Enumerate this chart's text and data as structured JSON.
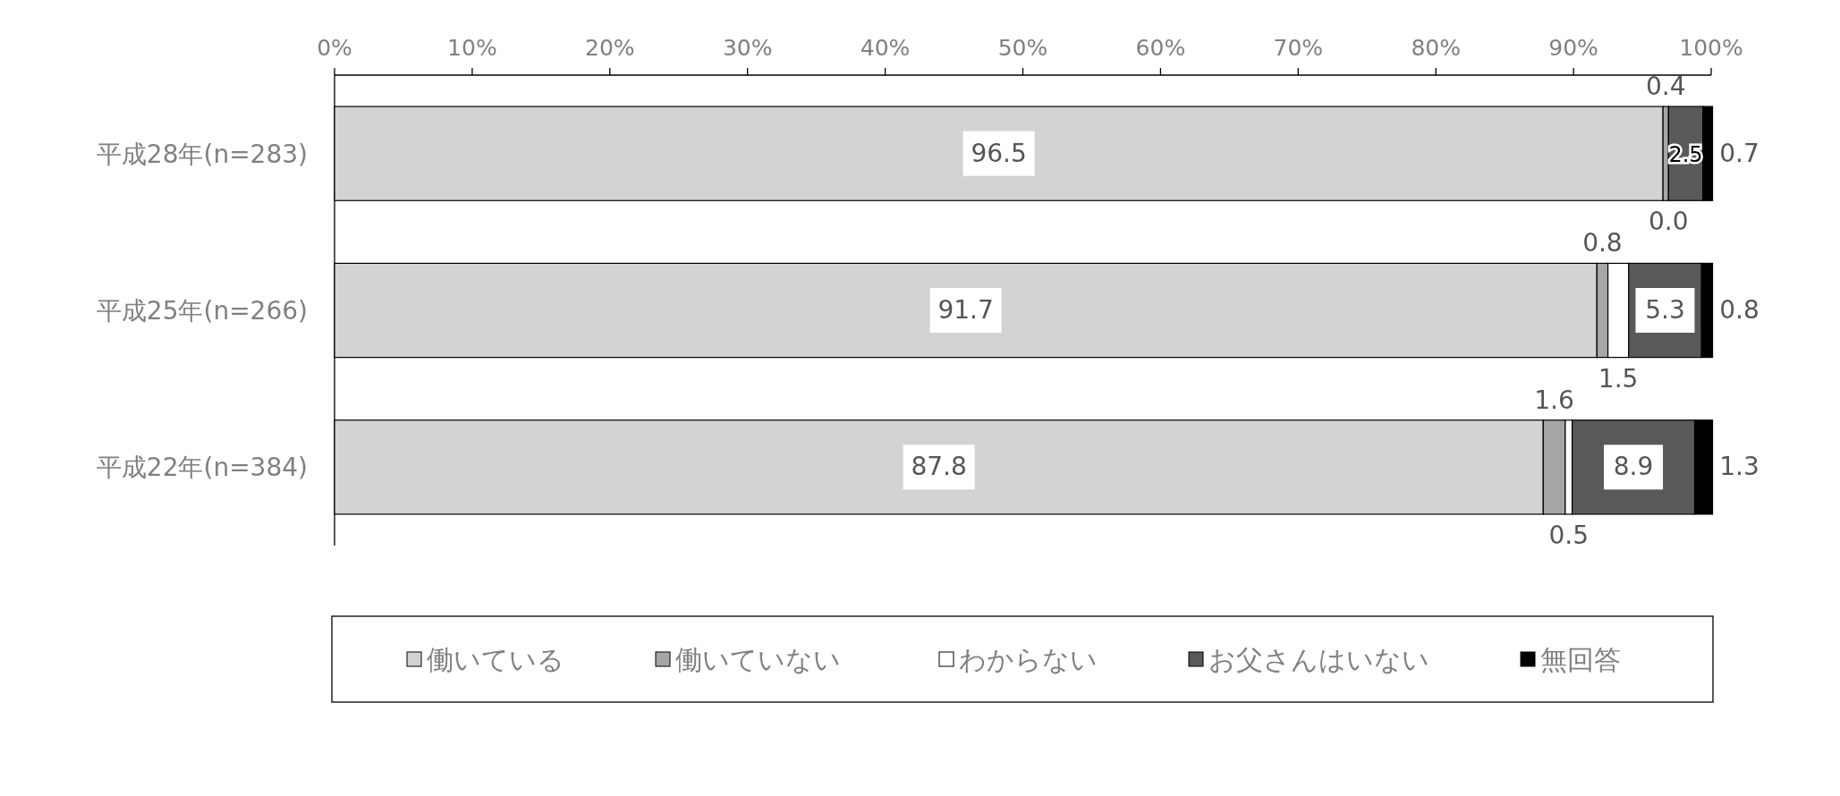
{
  "chart_data": {
    "type": "bar",
    "orientation": "horizontal",
    "stacked": true,
    "legend": "bottom",
    "grid": false,
    "categories": [
      "平成28年(n=283)",
      "平成25年(n=266)",
      "平成22年(n=384)"
    ],
    "xlim": [
      0,
      100
    ],
    "xticks": [
      {
        "value": 0,
        "label": "0%"
      },
      {
        "value": 10,
        "label": "10%"
      },
      {
        "value": 20,
        "label": "20%"
      },
      {
        "value": 30,
        "label": "30%"
      },
      {
        "value": 40,
        "label": "40%"
      },
      {
        "value": 50,
        "label": "50%"
      },
      {
        "value": 60,
        "label": "60%"
      },
      {
        "value": 70,
        "label": "70%"
      },
      {
        "value": 80,
        "label": "80%"
      },
      {
        "value": 90,
        "label": "90%"
      },
      {
        "value": 100,
        "label": "100%"
      }
    ],
    "series": [
      {
        "name": "働いている",
        "color": "#d3d3d3",
        "values": [
          96.5,
          91.7,
          87.8
        ],
        "value_labels": [
          "96.5",
          "91.7",
          "87.8"
        ]
      },
      {
        "name": "働いていない",
        "color": "#a6a6a6",
        "values": [
          0.4,
          0.8,
          1.6
        ],
        "value_labels": [
          "0.4",
          "0.8",
          "1.6"
        ]
      },
      {
        "name": "わからない",
        "color": "#ffffff",
        "values": [
          0.0,
          1.5,
          0.5
        ],
        "value_labels": [
          "0.0",
          "1.5",
          "0.5"
        ]
      },
      {
        "name": "お父さんはいない",
        "color": "#595959",
        "values": [
          2.5,
          5.3,
          8.9
        ],
        "value_labels": [
          "2.5",
          "5.3",
          "8.9"
        ]
      },
      {
        "name": "無回答",
        "color": "#000000",
        "values": [
          0.7,
          0.8,
          1.3
        ],
        "value_labels": [
          "0.7",
          "0.8",
          "1.3"
        ]
      }
    ]
  }
}
